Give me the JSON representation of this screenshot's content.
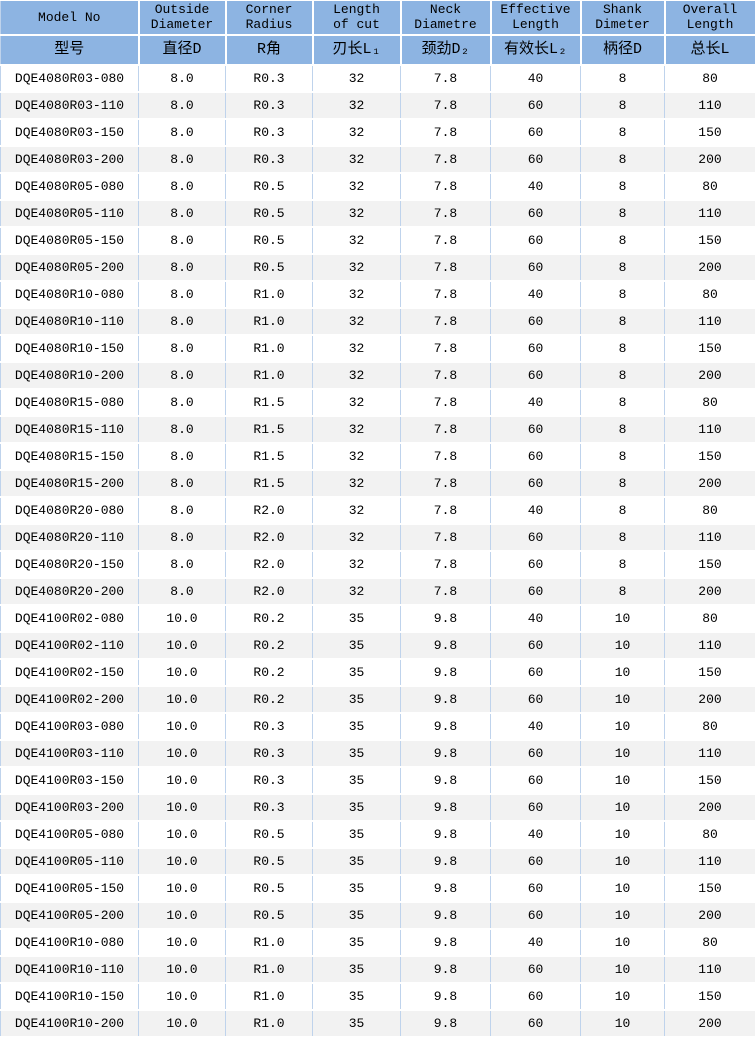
{
  "table": {
    "column_keys": [
      "model_no",
      "outside_diameter",
      "corner_radius",
      "length_of_cut",
      "neck_diametre",
      "effective_length",
      "shank_dimeter",
      "overall_length"
    ],
    "columns": [
      {
        "line1": "Model No",
        "line2": "",
        "cn": "型号"
      },
      {
        "line1": "Outside",
        "line2": "Diameter",
        "cn": "直径D"
      },
      {
        "line1": "Corner",
        "line2": "Radius",
        "cn": "R角"
      },
      {
        "line1": "Length",
        "line2": "of cut",
        "cn": "刃长L₁"
      },
      {
        "line1": "Neck",
        "line2": "Diametre",
        "cn": "颈劲D₂"
      },
      {
        "line1": "Effective",
        "line2": "Length",
        "cn": "有效长L₂"
      },
      {
        "line1": "Shank",
        "line2": "Dimeter",
        "cn": "柄径D"
      },
      {
        "line1": "Overall",
        "line2": "Length",
        "cn": "总长L"
      }
    ],
    "rows": [
      [
        "DQE4080R03-080",
        "8.0",
        "R0.3",
        "32",
        "7.8",
        "40",
        "8",
        "80"
      ],
      [
        "DQE4080R03-110",
        "8.0",
        "R0.3",
        "32",
        "7.8",
        "60",
        "8",
        "110"
      ],
      [
        "DQE4080R03-150",
        "8.0",
        "R0.3",
        "32",
        "7.8",
        "60",
        "8",
        "150"
      ],
      [
        "DQE4080R03-200",
        "8.0",
        "R0.3",
        "32",
        "7.8",
        "60",
        "8",
        "200"
      ],
      [
        "DQE4080R05-080",
        "8.0",
        "R0.5",
        "32",
        "7.8",
        "40",
        "8",
        "80"
      ],
      [
        "DQE4080R05-110",
        "8.0",
        "R0.5",
        "32",
        "7.8",
        "60",
        "8",
        "110"
      ],
      [
        "DQE4080R05-150",
        "8.0",
        "R0.5",
        "32",
        "7.8",
        "60",
        "8",
        "150"
      ],
      [
        "DQE4080R05-200",
        "8.0",
        "R0.5",
        "32",
        "7.8",
        "60",
        "8",
        "200"
      ],
      [
        "DQE4080R10-080",
        "8.0",
        "R1.0",
        "32",
        "7.8",
        "40",
        "8",
        "80"
      ],
      [
        "DQE4080R10-110",
        "8.0",
        "R1.0",
        "32",
        "7.8",
        "60",
        "8",
        "110"
      ],
      [
        "DQE4080R10-150",
        "8.0",
        "R1.0",
        "32",
        "7.8",
        "60",
        "8",
        "150"
      ],
      [
        "DQE4080R10-200",
        "8.0",
        "R1.0",
        "32",
        "7.8",
        "60",
        "8",
        "200"
      ],
      [
        "DQE4080R15-080",
        "8.0",
        "R1.5",
        "32",
        "7.8",
        "40",
        "8",
        "80"
      ],
      [
        "DQE4080R15-110",
        "8.0",
        "R1.5",
        "32",
        "7.8",
        "60",
        "8",
        "110"
      ],
      [
        "DQE4080R15-150",
        "8.0",
        "R1.5",
        "32",
        "7.8",
        "60",
        "8",
        "150"
      ],
      [
        "DQE4080R15-200",
        "8.0",
        "R1.5",
        "32",
        "7.8",
        "60",
        "8",
        "200"
      ],
      [
        "DQE4080R20-080",
        "8.0",
        "R2.0",
        "32",
        "7.8",
        "40",
        "8",
        "80"
      ],
      [
        "DQE4080R20-110",
        "8.0",
        "R2.0",
        "32",
        "7.8",
        "60",
        "8",
        "110"
      ],
      [
        "DQE4080R20-150",
        "8.0",
        "R2.0",
        "32",
        "7.8",
        "60",
        "8",
        "150"
      ],
      [
        "DQE4080R20-200",
        "8.0",
        "R2.0",
        "32",
        "7.8",
        "60",
        "8",
        "200"
      ],
      [
        "DQE4100R02-080",
        "10.0",
        "R0.2",
        "35",
        "9.8",
        "40",
        "10",
        "80"
      ],
      [
        "DQE4100R02-110",
        "10.0",
        "R0.2",
        "35",
        "9.8",
        "60",
        "10",
        "110"
      ],
      [
        "DQE4100R02-150",
        "10.0",
        "R0.2",
        "35",
        "9.8",
        "60",
        "10",
        "150"
      ],
      [
        "DQE4100R02-200",
        "10.0",
        "R0.2",
        "35",
        "9.8",
        "60",
        "10",
        "200"
      ],
      [
        "DQE4100R03-080",
        "10.0",
        "R0.3",
        "35",
        "9.8",
        "40",
        "10",
        "80"
      ],
      [
        "DQE4100R03-110",
        "10.0",
        "R0.3",
        "35",
        "9.8",
        "60",
        "10",
        "110"
      ],
      [
        "DQE4100R03-150",
        "10.0",
        "R0.3",
        "35",
        "9.8",
        "60",
        "10",
        "150"
      ],
      [
        "DQE4100R03-200",
        "10.0",
        "R0.3",
        "35",
        "9.8",
        "60",
        "10",
        "200"
      ],
      [
        "DQE4100R05-080",
        "10.0",
        "R0.5",
        "35",
        "9.8",
        "40",
        "10",
        "80"
      ],
      [
        "DQE4100R05-110",
        "10.0",
        "R0.5",
        "35",
        "9.8",
        "60",
        "10",
        "110"
      ],
      [
        "DQE4100R05-150",
        "10.0",
        "R0.5",
        "35",
        "9.8",
        "60",
        "10",
        "150"
      ],
      [
        "DQE4100R05-200",
        "10.0",
        "R0.5",
        "35",
        "9.8",
        "60",
        "10",
        "200"
      ],
      [
        "DQE4100R10-080",
        "10.0",
        "R1.0",
        "35",
        "9.8",
        "40",
        "10",
        "80"
      ],
      [
        "DQE4100R10-110",
        "10.0",
        "R1.0",
        "35",
        "9.8",
        "60",
        "10",
        "110"
      ],
      [
        "DQE4100R10-150",
        "10.0",
        "R1.0",
        "35",
        "9.8",
        "60",
        "10",
        "150"
      ],
      [
        "DQE4100R10-200",
        "10.0",
        "R1.0",
        "35",
        "9.8",
        "60",
        "10",
        "200"
      ]
    ]
  },
  "colors": {
    "header_bg": "#8DB4E2",
    "row_bg": "#FFFFFF",
    "row_alt_bg": "#F2F2F2",
    "grid_blue": "#BFD3EC",
    "grid_white": "#FFFFFF",
    "text": "#000000"
  }
}
